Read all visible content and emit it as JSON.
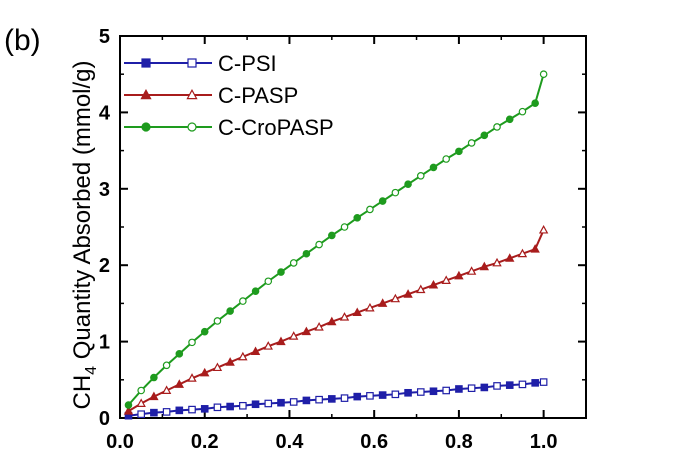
{
  "panel_label": "(b)",
  "colors": {
    "C-PSI": "#1f1fa8",
    "C-PASP": "#a81c1c",
    "C-CroPASP": "#1e9b1e",
    "axis": "#000000"
  },
  "chart_data": {
    "type": "scatter",
    "title": "",
    "xlabel": "",
    "ylabel_main": "CH",
    "ylabel_sub": "4",
    "ylabel_rest": " Quantity Absorbed (mmol/g)",
    "xlim": [
      0,
      1.1
    ],
    "ylim": [
      0,
      5
    ],
    "xticks": [
      0.0,
      0.2,
      0.4,
      0.6,
      0.8,
      1.0
    ],
    "xtick_labels": [
      "0.0",
      "0.2",
      "0.4",
      "0.6",
      "0.8",
      "1.0"
    ],
    "yticks": [
      0,
      1,
      2,
      3,
      4,
      5
    ],
    "ytick_labels": [
      "0",
      "1",
      "2",
      "3",
      "4",
      "5"
    ],
    "grid": false,
    "legend_position": "top-left",
    "x": [
      0.02,
      0.05,
      0.08,
      0.11,
      0.14,
      0.17,
      0.2,
      0.23,
      0.26,
      0.29,
      0.32,
      0.35,
      0.38,
      0.41,
      0.44,
      0.47,
      0.5,
      0.53,
      0.56,
      0.59,
      0.62,
      0.65,
      0.68,
      0.71,
      0.74,
      0.77,
      0.8,
      0.83,
      0.86,
      0.89,
      0.92,
      0.95,
      0.98,
      1.0
    ],
    "series": [
      {
        "name": "C-PSI",
        "marker": "square",
        "values": [
          0.03,
          0.05,
          0.07,
          0.08,
          0.1,
          0.11,
          0.12,
          0.14,
          0.15,
          0.16,
          0.18,
          0.19,
          0.2,
          0.21,
          0.23,
          0.24,
          0.25,
          0.26,
          0.28,
          0.29,
          0.3,
          0.31,
          0.33,
          0.34,
          0.35,
          0.36,
          0.38,
          0.39,
          0.4,
          0.42,
          0.43,
          0.44,
          0.46,
          0.47
        ]
      },
      {
        "name": "C-PASP",
        "marker": "triangle",
        "values": [
          0.09,
          0.19,
          0.28,
          0.36,
          0.44,
          0.52,
          0.59,
          0.66,
          0.73,
          0.8,
          0.87,
          0.94,
          1.0,
          1.07,
          1.13,
          1.19,
          1.26,
          1.32,
          1.38,
          1.44,
          1.5,
          1.56,
          1.62,
          1.68,
          1.74,
          1.8,
          1.86,
          1.92,
          1.98,
          2.03,
          2.09,
          2.15,
          2.21,
          2.46
        ]
      },
      {
        "name": "C-CroPASP",
        "marker": "circle",
        "values": [
          0.17,
          0.36,
          0.53,
          0.69,
          0.84,
          0.99,
          1.13,
          1.27,
          1.4,
          1.53,
          1.66,
          1.79,
          1.91,
          2.03,
          2.15,
          2.27,
          2.39,
          2.5,
          2.62,
          2.73,
          2.84,
          2.95,
          3.06,
          3.17,
          3.28,
          3.39,
          3.49,
          3.6,
          3.7,
          3.81,
          3.91,
          4.01,
          4.12,
          4.5
        ]
      }
    ]
  }
}
